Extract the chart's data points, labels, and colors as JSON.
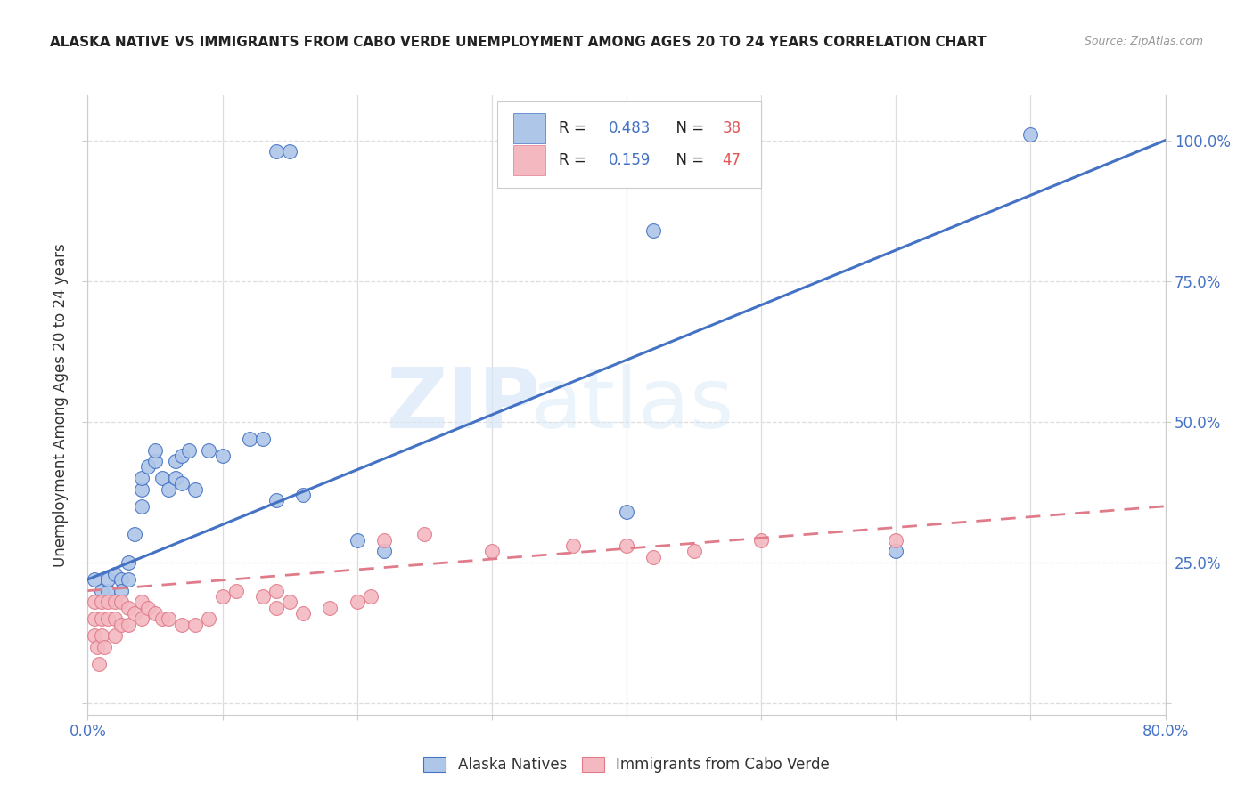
{
  "title": "ALASKA NATIVE VS IMMIGRANTS FROM CABO VERDE UNEMPLOYMENT AMONG AGES 20 TO 24 YEARS CORRELATION CHART",
  "source": "Source: ZipAtlas.com",
  "ylabel": "Unemployment Among Ages 20 to 24 years",
  "xlim": [
    0.0,
    0.8
  ],
  "ylim": [
    -0.02,
    1.08
  ],
  "xticks": [
    0.0,
    0.1,
    0.2,
    0.3,
    0.4,
    0.5,
    0.6,
    0.7,
    0.8
  ],
  "xticklabels": [
    "0.0%",
    "",
    "",
    "",
    "",
    "",
    "",
    "",
    "80.0%"
  ],
  "yticks": [
    0.0,
    0.25,
    0.5,
    0.75,
    1.0
  ],
  "right_yticklabels": [
    "",
    "25.0%",
    "50.0%",
    "75.0%",
    "100.0%"
  ],
  "watermark_zip": "ZIP",
  "watermark_atlas": "atlas",
  "legend_r1_val": "0.483",
  "legend_n1_val": "38",
  "legend_r2_val": "0.159",
  "legend_n2_val": "47",
  "blue_fill": "#aec6e8",
  "blue_edge": "#4472c4",
  "pink_fill": "#f4b8c1",
  "pink_edge": "#e07b8a",
  "line_blue": "#4472c4",
  "line_pink": "#e07b8a",
  "grid_color": "#dddddd",
  "alaska_x": [
    0.005,
    0.01,
    0.015,
    0.015,
    0.02,
    0.025,
    0.025,
    0.03,
    0.03,
    0.035,
    0.04,
    0.04,
    0.04,
    0.045,
    0.05,
    0.05,
    0.055,
    0.06,
    0.065,
    0.065,
    0.07,
    0.07,
    0.075,
    0.08,
    0.09,
    0.1,
    0.12,
    0.13,
    0.14,
    0.2,
    0.22,
    0.4,
    0.42,
    0.6,
    0.7,
    0.14,
    0.15,
    0.16
  ],
  "alaska_y": [
    0.22,
    0.2,
    0.2,
    0.22,
    0.23,
    0.22,
    0.2,
    0.25,
    0.22,
    0.3,
    0.35,
    0.38,
    0.4,
    0.42,
    0.43,
    0.45,
    0.4,
    0.38,
    0.43,
    0.4,
    0.39,
    0.44,
    0.45,
    0.38,
    0.45,
    0.44,
    0.47,
    0.47,
    0.36,
    0.29,
    0.27,
    0.34,
    0.84,
    0.27,
    1.01,
    0.98,
    0.98,
    0.37
  ],
  "cabo_x": [
    0.005,
    0.005,
    0.005,
    0.007,
    0.008,
    0.01,
    0.01,
    0.01,
    0.012,
    0.015,
    0.015,
    0.02,
    0.02,
    0.02,
    0.025,
    0.025,
    0.03,
    0.03,
    0.035,
    0.04,
    0.04,
    0.045,
    0.05,
    0.055,
    0.06,
    0.07,
    0.08,
    0.09,
    0.1,
    0.11,
    0.13,
    0.14,
    0.14,
    0.15,
    0.16,
    0.18,
    0.2,
    0.21,
    0.22,
    0.25,
    0.3,
    0.36,
    0.4,
    0.42,
    0.45,
    0.5,
    0.6
  ],
  "cabo_y": [
    0.18,
    0.15,
    0.12,
    0.1,
    0.07,
    0.18,
    0.15,
    0.12,
    0.1,
    0.18,
    0.15,
    0.18,
    0.15,
    0.12,
    0.18,
    0.14,
    0.17,
    0.14,
    0.16,
    0.18,
    0.15,
    0.17,
    0.16,
    0.15,
    0.15,
    0.14,
    0.14,
    0.15,
    0.19,
    0.2,
    0.19,
    0.2,
    0.17,
    0.18,
    0.16,
    0.17,
    0.18,
    0.19,
    0.29,
    0.3,
    0.27,
    0.28,
    0.28,
    0.26,
    0.27,
    0.29,
    0.29
  ],
  "ak_trend_x0": 0.0,
  "ak_trend_y0": 0.22,
  "ak_trend_x1": 0.8,
  "ak_trend_y1": 1.0,
  "cabo_trend_x0": 0.0,
  "cabo_trend_y0": 0.2,
  "cabo_trend_x1": 0.8,
  "cabo_trend_y1": 0.35
}
